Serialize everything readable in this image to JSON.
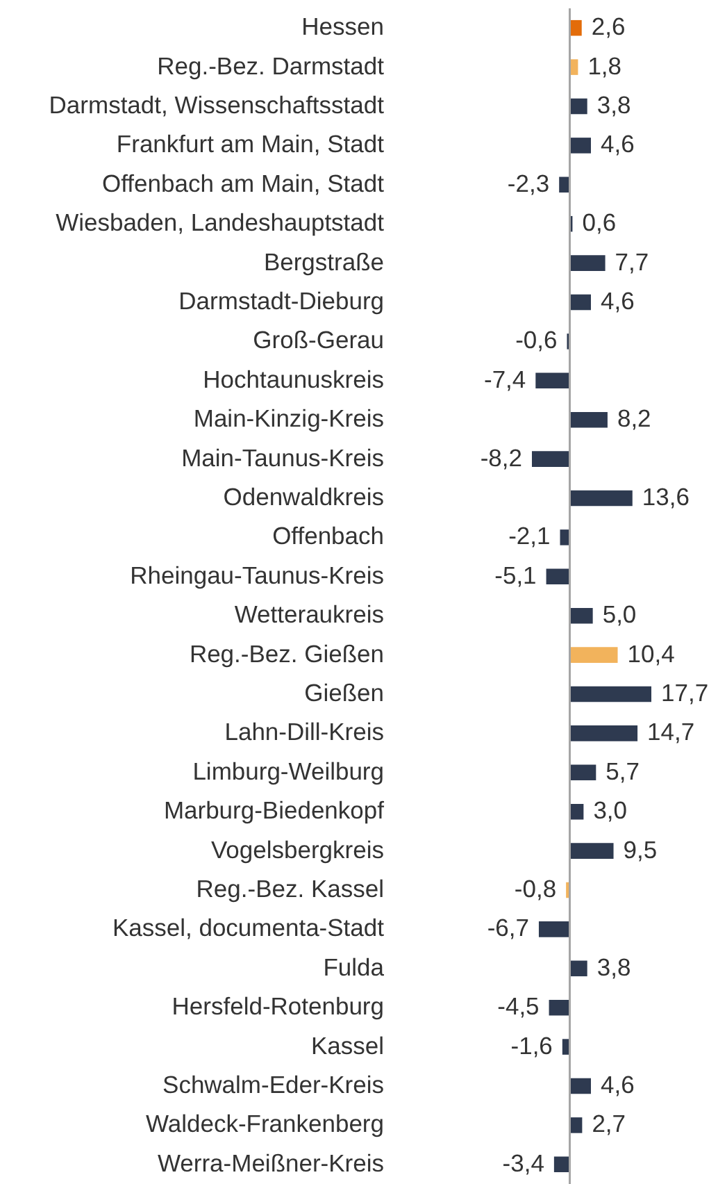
{
  "chart_data": {
    "type": "bar",
    "orientation": "horizontal",
    "value_labels": [
      "2,6",
      "1,8",
      "3,8",
      "4,6",
      "-2,3",
      "0,6",
      "7,7",
      "4,6",
      "-0,6",
      "-7,4",
      "8,2",
      "-8,2",
      "13,6",
      "-2,1",
      "-5,1",
      "5,0",
      "10,4",
      "17,7",
      "14,7",
      "5,7",
      "3,0",
      "9,5",
      "-0,8",
      "-6,7",
      "3,8",
      "-4,5",
      "-1,6",
      "4,6",
      "2,7",
      "-3,4"
    ],
    "categories": [
      "Hessen",
      "Reg.-Bez. Darmstadt",
      "Darmstadt, Wissenschaftsstadt",
      "Frankfurt am Main, Stadt",
      "Offenbach am Main, Stadt",
      "Wiesbaden, Landeshauptstadt",
      "Bergstraße",
      "Darmstadt-Dieburg",
      "Groß-Gerau",
      "Hochtaunuskreis",
      "Main-Kinzig-Kreis",
      "Main-Taunus-Kreis",
      "Odenwaldkreis",
      "Offenbach",
      "Rheingau-Taunus-Kreis",
      "Wetteraukreis",
      "Reg.-Bez. Gießen",
      "Gießen",
      "Lahn-Dill-Kreis",
      "Limburg-Weilburg",
      "Marburg-Biedenkopf",
      "Vogelsbergkreis",
      "Reg.-Bez. Kassel",
      "Kassel, documenta-Stadt",
      "Fulda",
      "Hersfeld-Rotenburg",
      "Kassel",
      "Schwalm-Eder-Kreis",
      "Waldeck-Frankenberg",
      "Werra-Meißner-Kreis"
    ],
    "values": [
      2.6,
      1.8,
      3.8,
      4.6,
      -2.3,
      0.6,
      7.7,
      4.6,
      -0.6,
      -7.4,
      8.2,
      -8.2,
      13.6,
      -2.1,
      -5.1,
      5.0,
      10.4,
      17.7,
      14.7,
      5.7,
      3.0,
      9.5,
      -0.8,
      -6.7,
      3.8,
      -4.5,
      -1.6,
      4.6,
      2.7,
      -3.4
    ],
    "colors": [
      "#e36c0a",
      "#f2b35c",
      "#2e3a50",
      "#2e3a50",
      "#2e3a50",
      "#2e3a50",
      "#2e3a50",
      "#2e3a50",
      "#2e3a50",
      "#2e3a50",
      "#2e3a50",
      "#2e3a50",
      "#2e3a50",
      "#2e3a50",
      "#2e3a50",
      "#2e3a50",
      "#f2b35c",
      "#2e3a50",
      "#2e3a50",
      "#2e3a50",
      "#2e3a50",
      "#2e3a50",
      "#f2b35c",
      "#2e3a50",
      "#2e3a50",
      "#2e3a50",
      "#2e3a50",
      "#2e3a50",
      "#2e3a50",
      "#2e3a50"
    ]
  }
}
